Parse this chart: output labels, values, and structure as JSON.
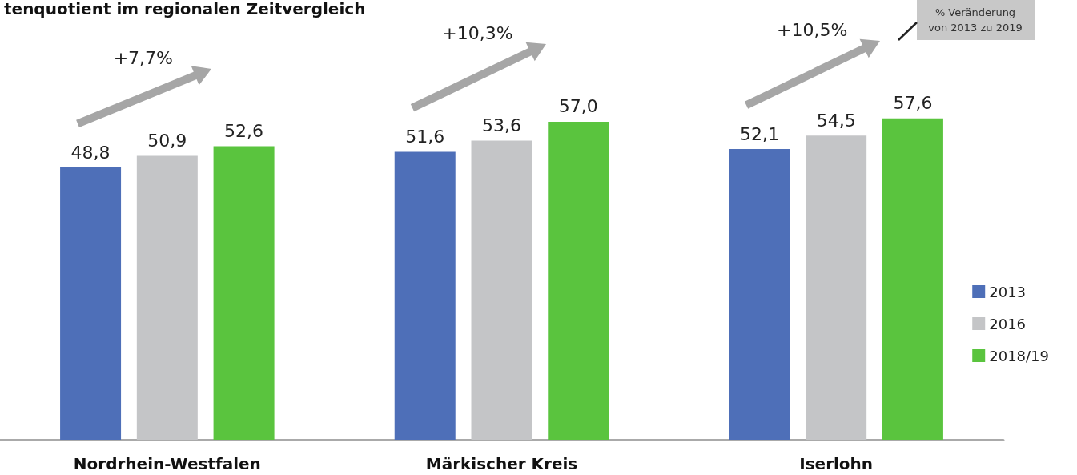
{
  "chart_data": {
    "type": "bar",
    "title": "tenquotient im regionalen Zeitvergleich",
    "categories": [
      "Nordrhein-Westfalen",
      "Märkischer Kreis",
      "Iserlohn"
    ],
    "series": [
      {
        "name": "2013",
        "color": "#4e6fb8",
        "values": [
          48.8,
          51.6,
          52.1
        ],
        "value_labels": [
          "48,8",
          "51,6",
          "52,1"
        ]
      },
      {
        "name": "2016",
        "color": "#c4c5c7",
        "values": [
          50.9,
          53.6,
          54.5
        ],
        "value_labels": [
          "50,9",
          "53,6",
          "54,5"
        ]
      },
      {
        "name": "2018/19",
        "color": "#5ac43e",
        "values": [
          52.6,
          57.0,
          57.6
        ],
        "value_labels": [
          "52,6",
          "57,0",
          "57,6"
        ]
      }
    ],
    "legend": "right",
    "grid": false,
    "annotations": [
      "+7,7%",
      "+10,3%",
      "+10,5%",
      "% Veränderung\nvon 2013 zu 2019"
    ]
  }
}
